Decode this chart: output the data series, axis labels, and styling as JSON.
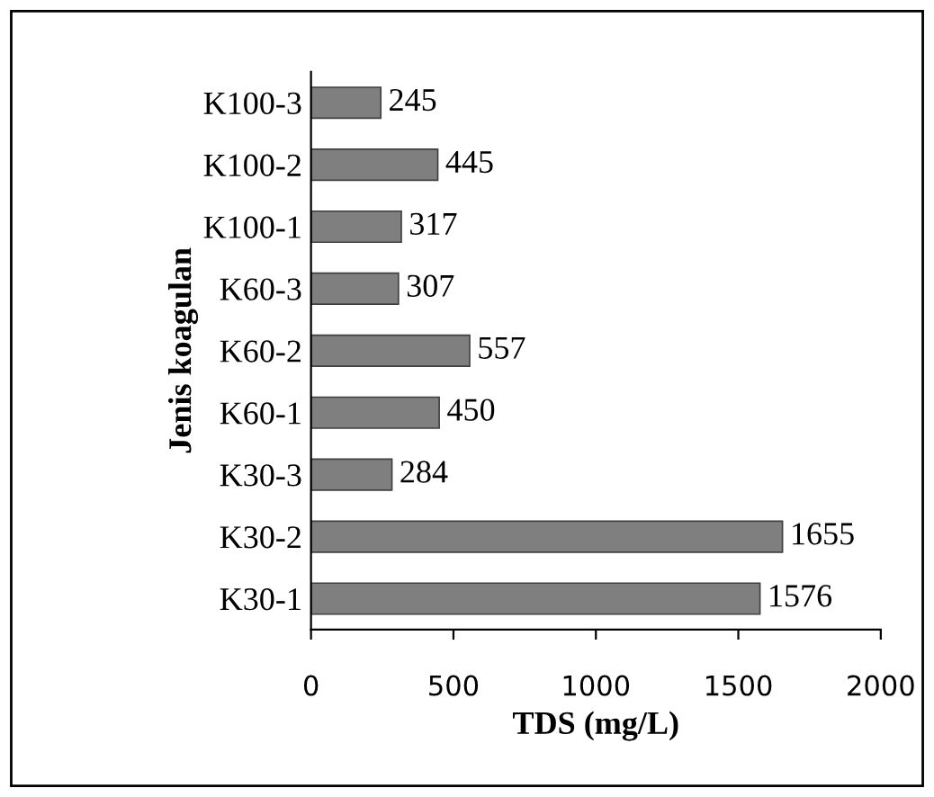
{
  "chart_data": {
    "type": "bar",
    "orientation": "horizontal",
    "xlabel": "TDS (mg/L)",
    "ylabel": "Jenis koagulan",
    "categories": [
      "K100-3",
      "K100-2",
      "K100-1",
      "K60-3",
      "K60-2",
      "K60-1",
      "K30-3",
      "K30-2",
      "K30-1"
    ],
    "values": [
      245,
      445,
      317,
      307,
      557,
      450,
      284,
      1655,
      1576
    ],
    "color": "#7f7f7f",
    "xlim": [
      0,
      2000
    ],
    "xticks": [
      0,
      500,
      1000,
      1500,
      2000
    ],
    "data_labels": true,
    "grid": false,
    "legend": false
  }
}
